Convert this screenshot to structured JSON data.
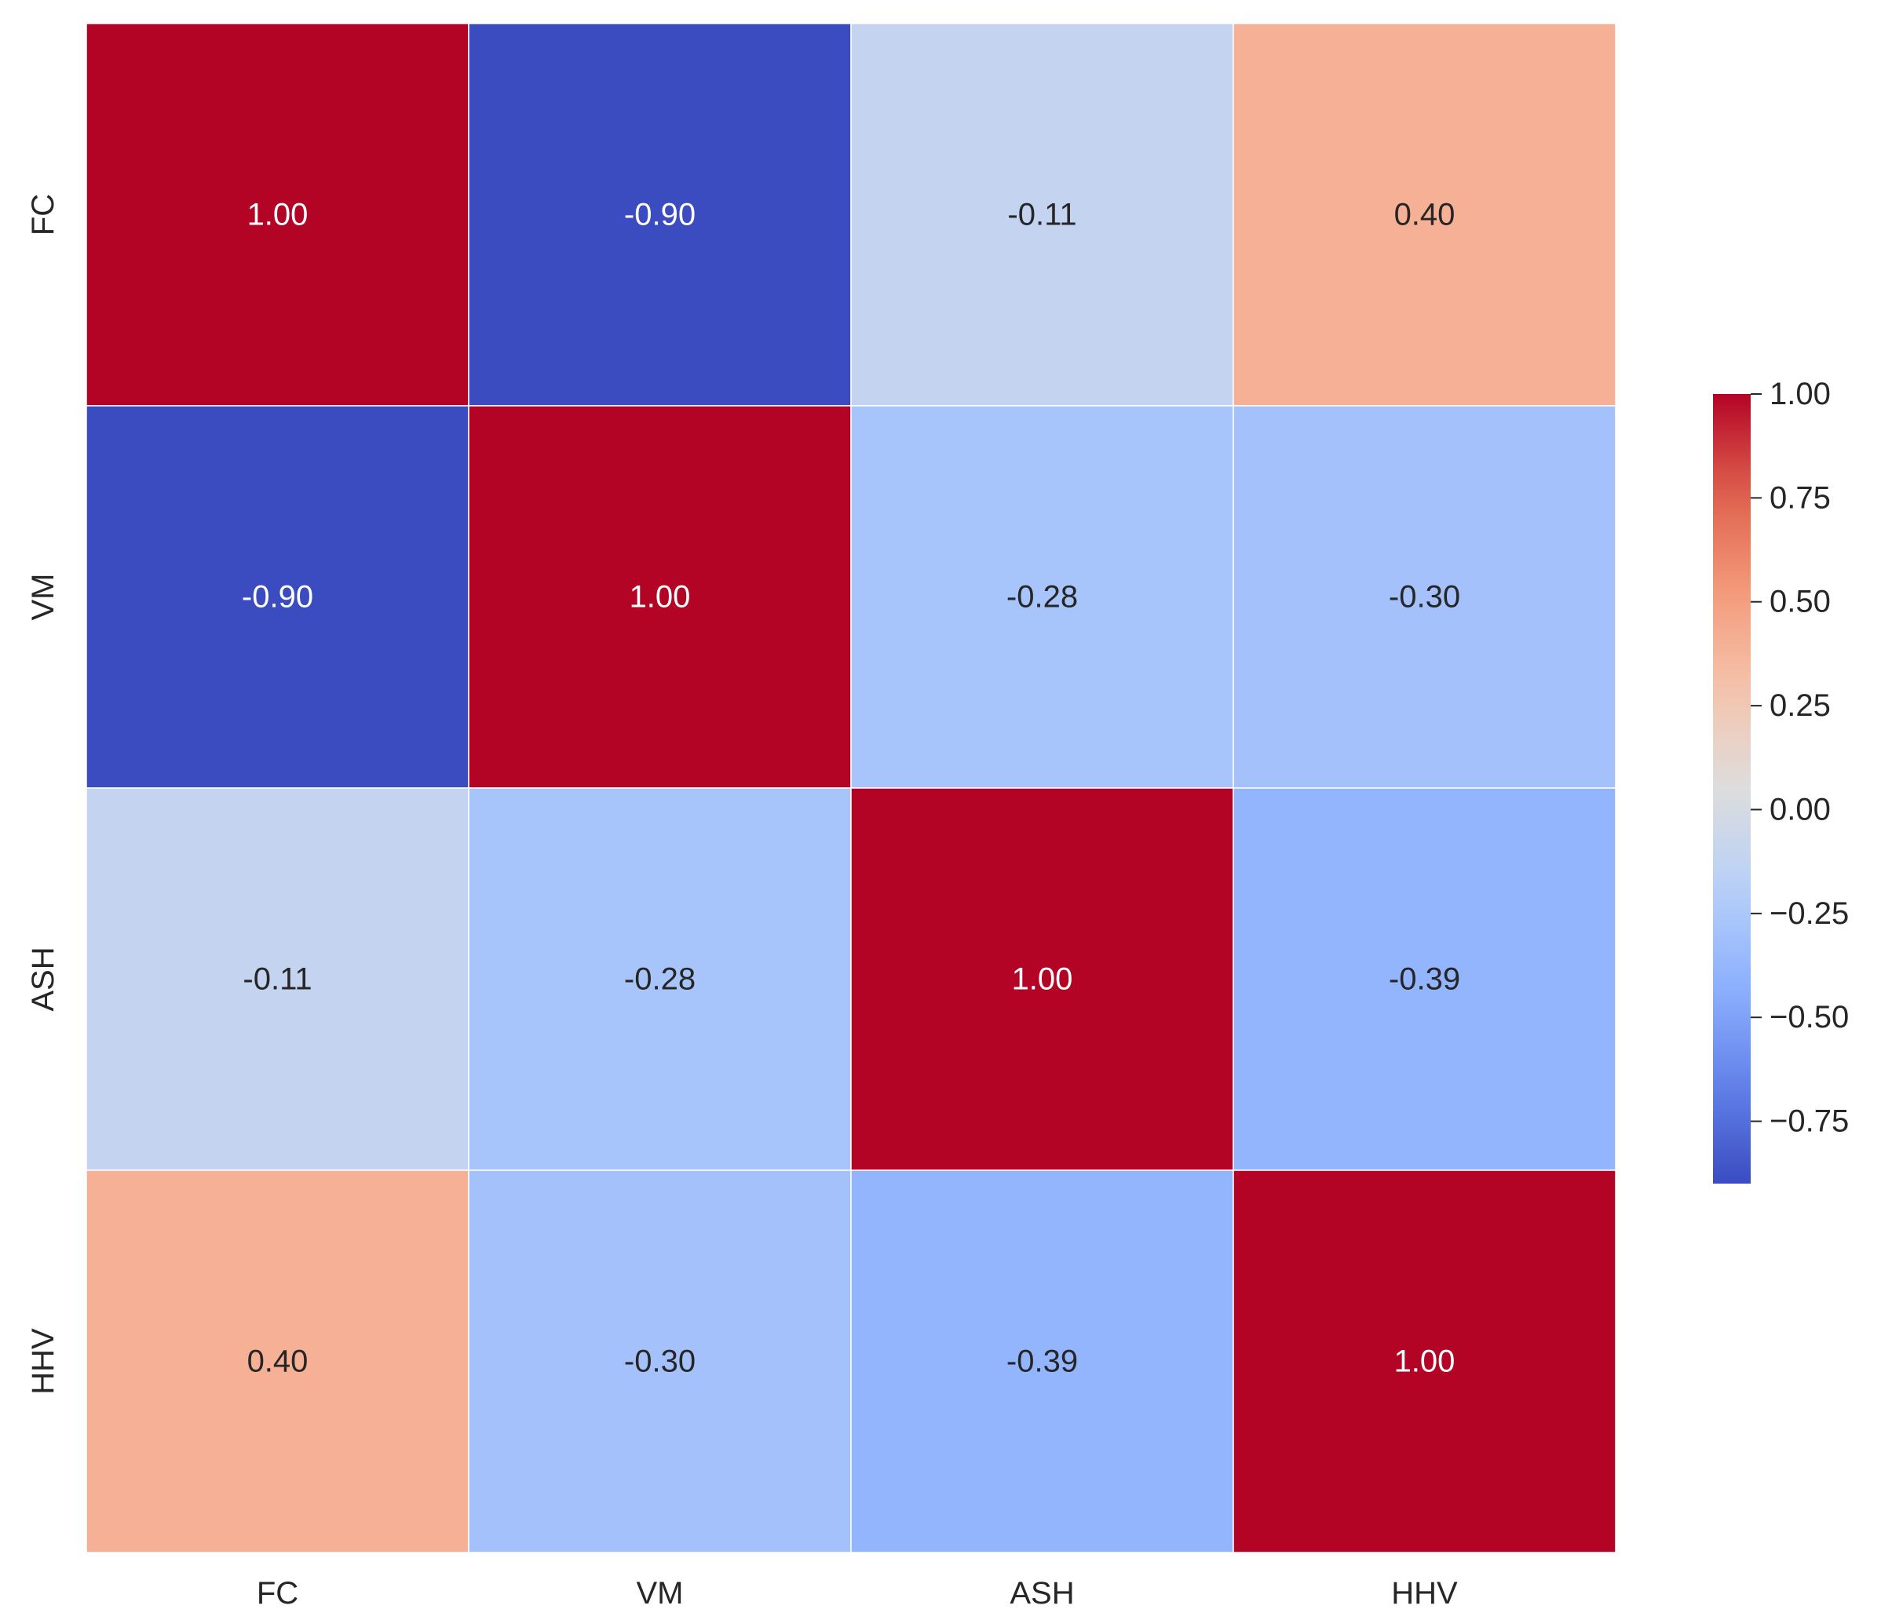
{
  "chart_data": {
    "type": "heatmap",
    "title": "",
    "xlabel": "",
    "ylabel": "",
    "x_categories": [
      "FC",
      "VM",
      "ASH",
      "HHV"
    ],
    "y_categories": [
      "FC",
      "VM",
      "ASH",
      "HHV"
    ],
    "values": [
      [
        1.0,
        -0.9,
        -0.11,
        0.4
      ],
      [
        -0.9,
        1.0,
        -0.28,
        -0.3
      ],
      [
        -0.11,
        -0.28,
        1.0,
        -0.39
      ],
      [
        0.4,
        -0.3,
        -0.39,
        1.0
      ]
    ],
    "value_labels": [
      [
        "1.00",
        "-0.90",
        "-0.11",
        "0.40"
      ],
      [
        "-0.90",
        "1.00",
        "-0.28",
        "-0.30"
      ],
      [
        "-0.11",
        "-0.28",
        "1.00",
        "-0.39"
      ],
      [
        "0.40",
        "-0.30",
        "-0.39",
        "1.00"
      ]
    ],
    "colormap": "coolwarm",
    "colorbar": {
      "range": [
        -0.9,
        1.0
      ],
      "ticks": [
        1.0,
        0.75,
        0.5,
        0.25,
        0.0,
        -0.25,
        -0.5,
        -0.75
      ],
      "tick_labels": [
        "1.00",
        "0.75",
        "0.50",
        "0.25",
        "0.00",
        "−0.25",
        "−0.50",
        "−0.75"
      ]
    }
  }
}
